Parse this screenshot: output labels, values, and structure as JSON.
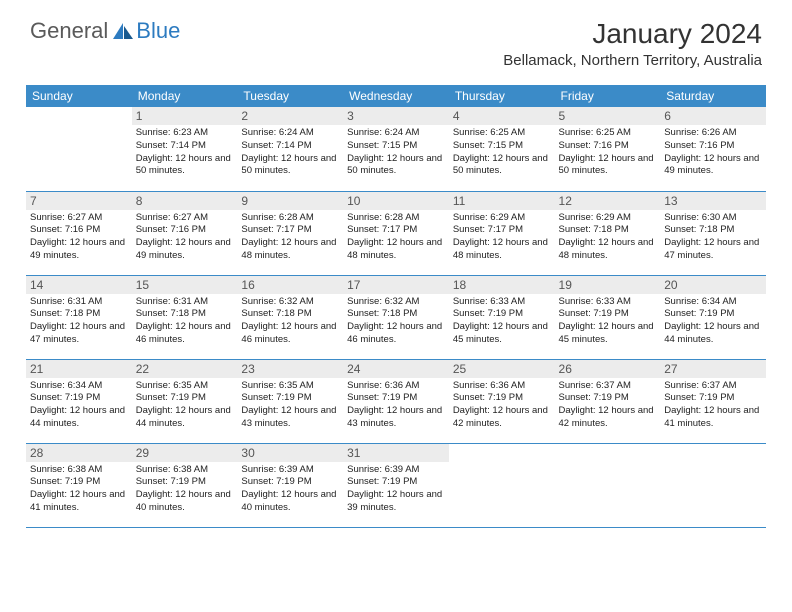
{
  "logo": {
    "text1": "General",
    "text2": "Blue"
  },
  "title": "January 2024",
  "location": "Bellamack, Northern Territory, Australia",
  "colors": {
    "header_bg": "#3b8bc8",
    "header_text": "#ffffff",
    "daynum_bg": "#ececec",
    "border": "#3b8bc8",
    "logo_gray": "#5a5a5a",
    "logo_blue": "#2d7bc0"
  },
  "weekdays": [
    "Sunday",
    "Monday",
    "Tuesday",
    "Wednesday",
    "Thursday",
    "Friday",
    "Saturday"
  ],
  "weeks": [
    [
      {
        "n": "",
        "sr": "",
        "ss": "",
        "dl": ""
      },
      {
        "n": "1",
        "sr": "6:23 AM",
        "ss": "7:14 PM",
        "dl": "12 hours and 50 minutes."
      },
      {
        "n": "2",
        "sr": "6:24 AM",
        "ss": "7:14 PM",
        "dl": "12 hours and 50 minutes."
      },
      {
        "n": "3",
        "sr": "6:24 AM",
        "ss": "7:15 PM",
        "dl": "12 hours and 50 minutes."
      },
      {
        "n": "4",
        "sr": "6:25 AM",
        "ss": "7:15 PM",
        "dl": "12 hours and 50 minutes."
      },
      {
        "n": "5",
        "sr": "6:25 AM",
        "ss": "7:16 PM",
        "dl": "12 hours and 50 minutes."
      },
      {
        "n": "6",
        "sr": "6:26 AM",
        "ss": "7:16 PM",
        "dl": "12 hours and 49 minutes."
      }
    ],
    [
      {
        "n": "7",
        "sr": "6:27 AM",
        "ss": "7:16 PM",
        "dl": "12 hours and 49 minutes."
      },
      {
        "n": "8",
        "sr": "6:27 AM",
        "ss": "7:16 PM",
        "dl": "12 hours and 49 minutes."
      },
      {
        "n": "9",
        "sr": "6:28 AM",
        "ss": "7:17 PM",
        "dl": "12 hours and 48 minutes."
      },
      {
        "n": "10",
        "sr": "6:28 AM",
        "ss": "7:17 PM",
        "dl": "12 hours and 48 minutes."
      },
      {
        "n": "11",
        "sr": "6:29 AM",
        "ss": "7:17 PM",
        "dl": "12 hours and 48 minutes."
      },
      {
        "n": "12",
        "sr": "6:29 AM",
        "ss": "7:18 PM",
        "dl": "12 hours and 48 minutes."
      },
      {
        "n": "13",
        "sr": "6:30 AM",
        "ss": "7:18 PM",
        "dl": "12 hours and 47 minutes."
      }
    ],
    [
      {
        "n": "14",
        "sr": "6:31 AM",
        "ss": "7:18 PM",
        "dl": "12 hours and 47 minutes."
      },
      {
        "n": "15",
        "sr": "6:31 AM",
        "ss": "7:18 PM",
        "dl": "12 hours and 46 minutes."
      },
      {
        "n": "16",
        "sr": "6:32 AM",
        "ss": "7:18 PM",
        "dl": "12 hours and 46 minutes."
      },
      {
        "n": "17",
        "sr": "6:32 AM",
        "ss": "7:18 PM",
        "dl": "12 hours and 46 minutes."
      },
      {
        "n": "18",
        "sr": "6:33 AM",
        "ss": "7:19 PM",
        "dl": "12 hours and 45 minutes."
      },
      {
        "n": "19",
        "sr": "6:33 AM",
        "ss": "7:19 PM",
        "dl": "12 hours and 45 minutes."
      },
      {
        "n": "20",
        "sr": "6:34 AM",
        "ss": "7:19 PM",
        "dl": "12 hours and 44 minutes."
      }
    ],
    [
      {
        "n": "21",
        "sr": "6:34 AM",
        "ss": "7:19 PM",
        "dl": "12 hours and 44 minutes."
      },
      {
        "n": "22",
        "sr": "6:35 AM",
        "ss": "7:19 PM",
        "dl": "12 hours and 44 minutes."
      },
      {
        "n": "23",
        "sr": "6:35 AM",
        "ss": "7:19 PM",
        "dl": "12 hours and 43 minutes."
      },
      {
        "n": "24",
        "sr": "6:36 AM",
        "ss": "7:19 PM",
        "dl": "12 hours and 43 minutes."
      },
      {
        "n": "25",
        "sr": "6:36 AM",
        "ss": "7:19 PM",
        "dl": "12 hours and 42 minutes."
      },
      {
        "n": "26",
        "sr": "6:37 AM",
        "ss": "7:19 PM",
        "dl": "12 hours and 42 minutes."
      },
      {
        "n": "27",
        "sr": "6:37 AM",
        "ss": "7:19 PM",
        "dl": "12 hours and 41 minutes."
      }
    ],
    [
      {
        "n": "28",
        "sr": "6:38 AM",
        "ss": "7:19 PM",
        "dl": "12 hours and 41 minutes."
      },
      {
        "n": "29",
        "sr": "6:38 AM",
        "ss": "7:19 PM",
        "dl": "12 hours and 40 minutes."
      },
      {
        "n": "30",
        "sr": "6:39 AM",
        "ss": "7:19 PM",
        "dl": "12 hours and 40 minutes."
      },
      {
        "n": "31",
        "sr": "6:39 AM",
        "ss": "7:19 PM",
        "dl": "12 hours and 39 minutes."
      },
      {
        "n": "",
        "sr": "",
        "ss": "",
        "dl": ""
      },
      {
        "n": "",
        "sr": "",
        "ss": "",
        "dl": ""
      },
      {
        "n": "",
        "sr": "",
        "ss": "",
        "dl": ""
      }
    ]
  ],
  "labels": {
    "sunrise": "Sunrise:",
    "sunset": "Sunset:",
    "daylight": "Daylight:"
  }
}
